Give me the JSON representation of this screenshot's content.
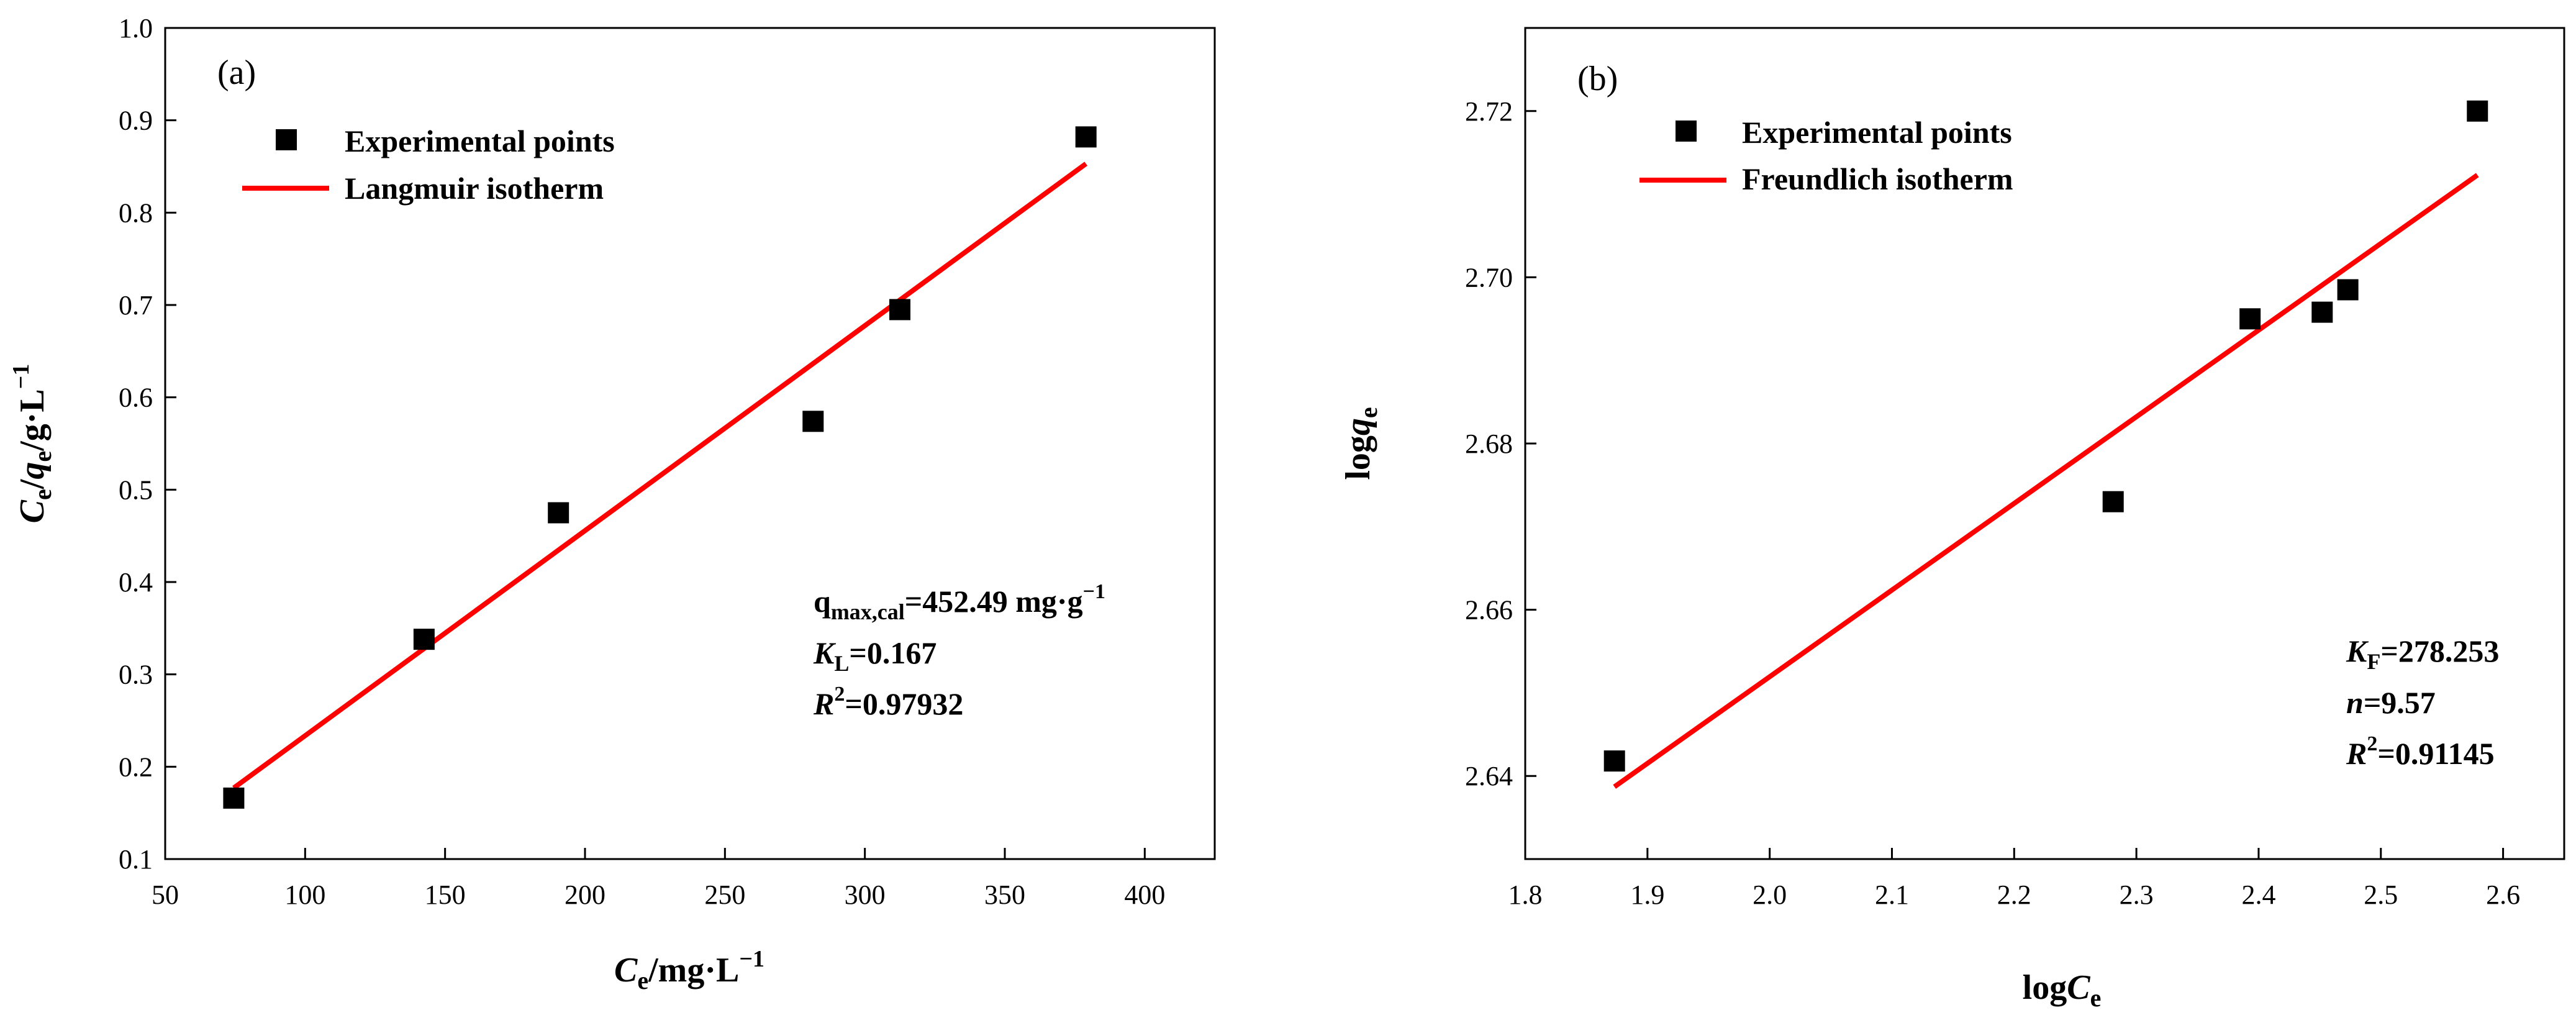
{
  "chart_data": [
    {
      "type": "scatter",
      "panel_label": "(a)",
      "xlabel": {
        "var": "C",
        "sub": "e",
        "unit": "/mg·L",
        "sup": "−1"
      },
      "ylabel": {
        "var1": "C",
        "sub1": "e",
        "sep": "/",
        "var2": "q",
        "sub2": "e",
        "unit": "/g·L",
        "sup": "−1"
      },
      "xlim": [
        50,
        425
      ],
      "ylim": [
        0.1,
        1.0
      ],
      "xticks": [
        50,
        100,
        150,
        200,
        250,
        300,
        350,
        400
      ],
      "yticks": [
        0.1,
        0.2,
        0.3,
        0.4,
        0.5,
        0.6,
        0.7,
        0.8,
        0.9,
        1.0
      ],
      "xtick_labels": [
        "50",
        "100",
        "150",
        "200",
        "250",
        "300",
        "350",
        "400"
      ],
      "ytick_labels": [
        "0.1",
        "0.2",
        "0.3",
        "0.4",
        "0.5",
        "0.6",
        "0.7",
        "0.8",
        "0.9",
        "1.0"
      ],
      "legend": [
        "Experimental points",
        "Langmuir isotherm"
      ],
      "series": [
        {
          "name": "Experimental points",
          "kind": "scatter",
          "x": [
            74.5,
            142.5,
            190.5,
            281.5,
            312.5,
            379.0
          ],
          "y": [
            0.166,
            0.338,
            0.475,
            0.574,
            0.695,
            0.882
          ]
        },
        {
          "name": "Langmuir isotherm",
          "kind": "line",
          "x": [
            74.5,
            379.0
          ],
          "y": [
            0.177,
            0.853
          ]
        }
      ],
      "annotations": {
        "line1": {
          "main": "q",
          "sub": "max,cal",
          "rest": "=452.49 mg·g",
          "sup": "−1"
        },
        "line2": {
          "var": "K",
          "sub": "L",
          "rest": "=0.167"
        },
        "line3": {
          "var": "R",
          "sup": "2",
          "rest": "=0.97932"
        }
      }
    },
    {
      "type": "scatter",
      "panel_label": "(b)",
      "xlabel": {
        "prefix": "log",
        "var": "C",
        "sub": "e"
      },
      "ylabel": {
        "prefix": "log",
        "var": "q",
        "sub": "e"
      },
      "xlim": [
        1.8,
        2.65
      ],
      "ylim": [
        2.63,
        2.73
      ],
      "xticks": [
        1.8,
        1.9,
        2.0,
        2.1,
        2.2,
        2.3,
        2.4,
        2.5,
        2.6
      ],
      "yticks": [
        2.64,
        2.66,
        2.68,
        2.7,
        2.72
      ],
      "xtick_labels": [
        "1.8",
        "1.9",
        "2.0",
        "2.1",
        "2.2",
        "2.3",
        "2.4",
        "2.5",
        "2.6"
      ],
      "ytick_labels": [
        "2.64",
        "2.66",
        "2.68",
        "2.70",
        "2.72"
      ],
      "legend": [
        "Experimental points",
        "Freundlich isotherm"
      ],
      "series": [
        {
          "name": "Experimental points",
          "kind": "scatter",
          "x": [
            1.873,
            2.281,
            2.393,
            2.452,
            2.473,
            2.579
          ],
          "y": [
            2.6418,
            2.673,
            2.695,
            2.6958,
            2.6985,
            2.72
          ]
        },
        {
          "name": "Freundlich isotherm",
          "kind": "line",
          "x": [
            1.873,
            2.579
          ],
          "y": [
            2.6387,
            2.7123
          ]
        }
      ],
      "annotations": {
        "line1": {
          "var": "K",
          "sub": "F",
          "rest": "=278.253"
        },
        "line2": {
          "var": "n",
          "rest": "=9.57"
        },
        "line3": {
          "var": "R",
          "sup": "2",
          "rest": "=0.91145"
        }
      }
    }
  ]
}
